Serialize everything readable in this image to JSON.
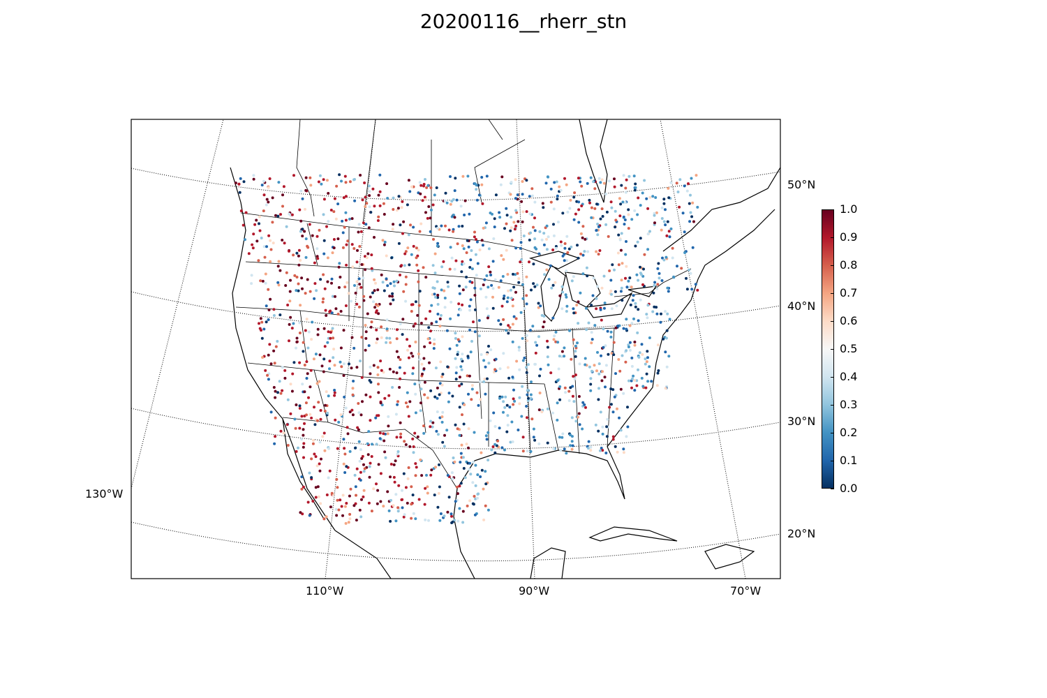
{
  "title": "20200116__rherr_stn",
  "lon_labels": [
    "130°W",
    "110°W",
    "90°W",
    "70°W"
  ],
  "lat_labels": [
    "50°N",
    "40°N",
    "30°N",
    "20°N"
  ],
  "colorbar": {
    "min": 0.0,
    "max": 1.0,
    "ticks": [
      "0.0",
      "0.1",
      "0.2",
      "0.3",
      "0.4",
      "0.5",
      "0.6",
      "0.7",
      "0.8",
      "0.9",
      "1.0"
    ],
    "colors": [
      "#053061",
      "#2166ac",
      "#4393c3",
      "#92c5de",
      "#d1e5f0",
      "#f7f7f7",
      "#fddbc7",
      "#f4a582",
      "#d6604d",
      "#b2182b",
      "#67001f"
    ]
  },
  "colormap": "RdBu_r"
}
